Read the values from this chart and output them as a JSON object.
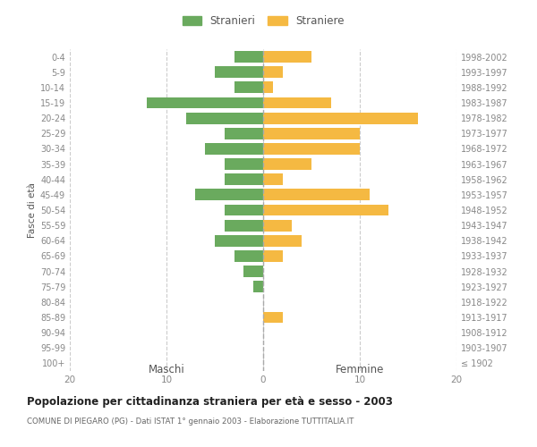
{
  "age_groups": [
    "0-4",
    "5-9",
    "10-14",
    "15-19",
    "20-24",
    "25-29",
    "30-34",
    "35-39",
    "40-44",
    "45-49",
    "50-54",
    "55-59",
    "60-64",
    "65-69",
    "70-74",
    "75-79",
    "80-84",
    "85-89",
    "90-94",
    "95-99",
    "100+"
  ],
  "birth_years": [
    "1998-2002",
    "1993-1997",
    "1988-1992",
    "1983-1987",
    "1978-1982",
    "1973-1977",
    "1968-1972",
    "1963-1967",
    "1958-1962",
    "1953-1957",
    "1948-1952",
    "1943-1947",
    "1938-1942",
    "1933-1937",
    "1928-1932",
    "1923-1927",
    "1918-1922",
    "1913-1917",
    "1908-1912",
    "1903-1907",
    "≤ 1902"
  ],
  "males": [
    3,
    5,
    3,
    12,
    8,
    4,
    6,
    4,
    4,
    7,
    4,
    4,
    5,
    3,
    2,
    1,
    0,
    0,
    0,
    0,
    0
  ],
  "females": [
    5,
    2,
    1,
    7,
    16,
    10,
    10,
    5,
    2,
    11,
    13,
    3,
    4,
    2,
    0,
    0,
    0,
    2,
    0,
    0,
    0
  ],
  "male_color": "#6aaa5e",
  "female_color": "#f5b942",
  "background_color": "#ffffff",
  "grid_color": "#cccccc",
  "title": "Popolazione per cittadinanza straniera per età e sesso - 2003",
  "subtitle": "COMUNE DI PIEGARO (PG) - Dati ISTAT 1° gennaio 2003 - Elaborazione TUTTITALIA.IT",
  "xlabel_left": "Maschi",
  "xlabel_right": "Femmine",
  "ylabel_left": "Fasce di età",
  "legend_male": "Stranieri",
  "legend_female": "Straniere",
  "xlim": 20,
  "tick_color": "#888888",
  "dashed_line_color": "#aaaaaa",
  "header_color": "#555555"
}
